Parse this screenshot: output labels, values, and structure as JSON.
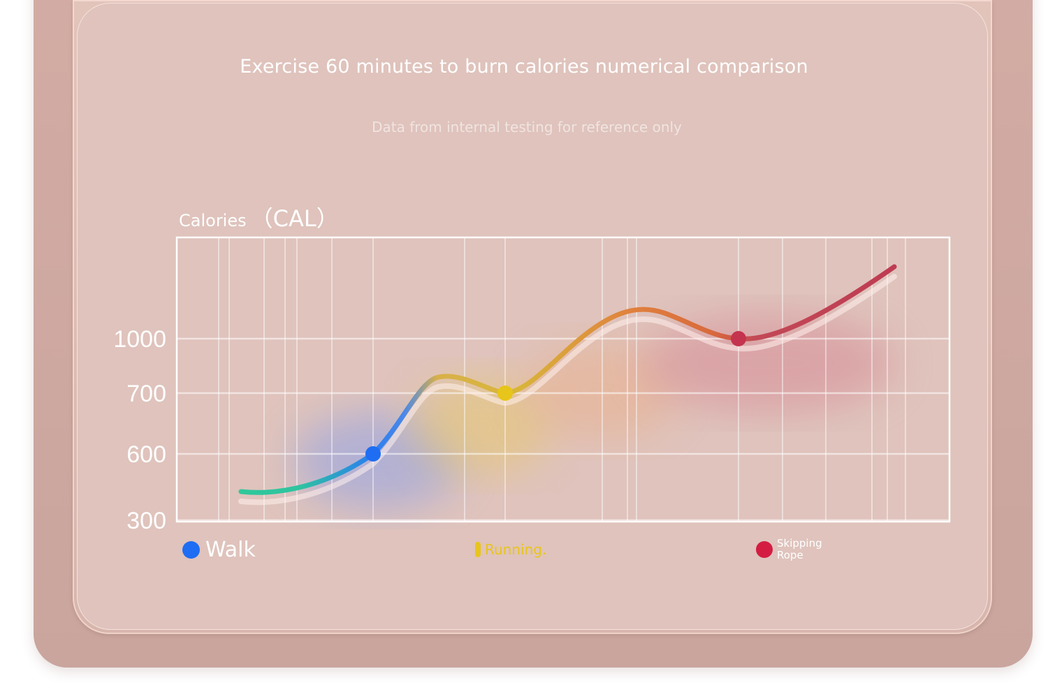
{
  "chart_data": {
    "type": "line",
    "title": "Exercise 60 minutes to burn calories numerical comparison",
    "subtitle": "Data from internal testing for reference only",
    "ylabel": "Calories",
    "yunit": "（CAL）",
    "yticks": [
      "1000",
      "700",
      "600",
      "300"
    ],
    "series": [
      {
        "name": "Walk",
        "color": "#1e6df2",
        "value": 600
      },
      {
        "name": "Running.",
        "color": "#e8c51a",
        "value": 700
      },
      {
        "name": "Skipping Rope",
        "color": "#d41c42",
        "value": 1000
      }
    ],
    "legend_placement": "bottom",
    "grid": true
  }
}
